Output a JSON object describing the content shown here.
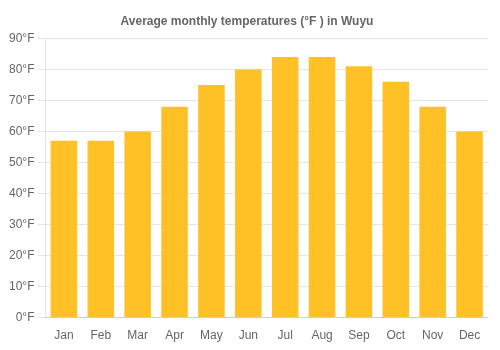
{
  "chart_data": {
    "type": "bar",
    "title": "Average monthly temperatures (°F ) in Wuyu",
    "categories": [
      "Jan",
      "Feb",
      "Mar",
      "Apr",
      "May",
      "Jun",
      "Jul",
      "Aug",
      "Sep",
      "Oct",
      "Nov",
      "Dec"
    ],
    "values": [
      57,
      57,
      60,
      68,
      75,
      80,
      84,
      84,
      81,
      76,
      68,
      60
    ],
    "color": "#FFC125",
    "ylim": [
      0,
      90
    ],
    "yticks": [
      {
        "value": 0,
        "label": "0°F"
      },
      {
        "value": 10,
        "label": "10°F"
      },
      {
        "value": 20,
        "label": "20°F"
      },
      {
        "value": 30,
        "label": "30°F"
      },
      {
        "value": 40,
        "label": "40°F"
      },
      {
        "value": 50,
        "label": "50°F"
      },
      {
        "value": 60,
        "label": "60°F"
      },
      {
        "value": 70,
        "label": "70°F"
      },
      {
        "value": 80,
        "label": "80°F"
      },
      {
        "value": 90,
        "label": "90°F"
      }
    ],
    "grid": true
  }
}
